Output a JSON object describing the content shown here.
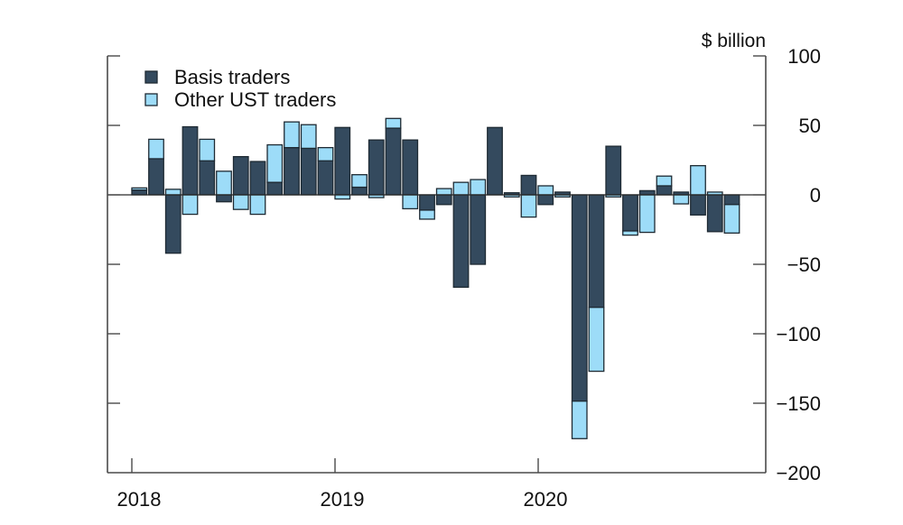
{
  "chart_data": {
    "type": "bar",
    "stacked": true,
    "title": "",
    "unit_label": "$ billion",
    "xlabel": "",
    "ylabel": "$ billion",
    "ylim": [
      -200,
      100
    ],
    "yticks": [
      100,
      50,
      0,
      -50,
      -100,
      -150,
      -200
    ],
    "ytick_labels": [
      "100",
      "50",
      "0",
      "−50",
      "−100",
      "−150",
      "−200"
    ],
    "xtick_labels": [
      "2018",
      "2019",
      "2020"
    ],
    "xtick_month_index": [
      0,
      12,
      24
    ],
    "grid": false,
    "legend_position": "top-left",
    "frequency": "monthly",
    "period": "Jan 2018 - Dec 2020",
    "categories": [
      "2018-01",
      "2018-02",
      "2018-03",
      "2018-04",
      "2018-05",
      "2018-06",
      "2018-07",
      "2018-08",
      "2018-09",
      "2018-10",
      "2018-11",
      "2018-12",
      "2019-01",
      "2019-02",
      "2019-03",
      "2019-04",
      "2019-05",
      "2019-06",
      "2019-07",
      "2019-08",
      "2019-09",
      "2019-10",
      "2019-11",
      "2019-12",
      "2020-01",
      "2020-02",
      "2020-03",
      "2020-04",
      "2020-05",
      "2020-06",
      "2020-07",
      "2020-08",
      "2020-09",
      "2020-10",
      "2020-11",
      "2020-12"
    ],
    "series": [
      {
        "name": "Basis traders",
        "color": "#344a5e",
        "values": [
          3.5,
          26,
          -42,
          49,
          24.5,
          -5,
          27.5,
          24,
          9,
          34,
          33.5,
          24.5,
          48.5,
          5.5,
          39.5,
          48,
          39.5,
          -11,
          -7,
          -66.5,
          -50,
          48.5,
          1.5,
          14,
          -7,
          2,
          -148.5,
          -81,
          35,
          -26,
          3,
          6.5,
          2,
          -14.5,
          -26.5,
          -7
        ]
      },
      {
        "name": "Other UST traders",
        "color": "#9ddcf8",
        "values": [
          1.5,
          14,
          4,
          -14,
          15.5,
          17,
          -10.5,
          -14,
          27,
          18.5,
          17,
          9.5,
          -3,
          9,
          -2,
          7,
          -10,
          -6.5,
          4.5,
          9,
          11,
          0,
          -1.5,
          -16,
          6.5,
          -1.5,
          -27,
          -46,
          -1.5,
          -3,
          -27,
          7,
          -6.5,
          21,
          2,
          -20.5
        ]
      }
    ]
  }
}
